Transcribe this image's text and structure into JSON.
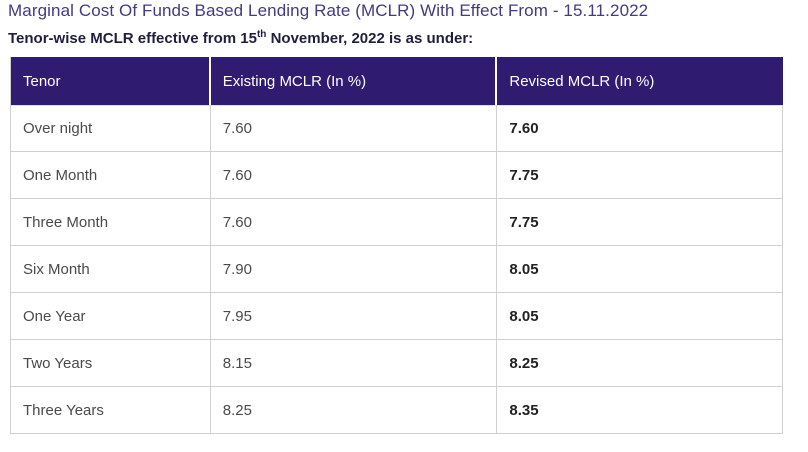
{
  "page": {
    "title": "Marginal Cost Of Funds Based Lending Rate (MCLR) With Effect From - 15.11.2022",
    "subtitle_prefix": "Tenor-wise MCLR effective from 15",
    "subtitle_superscript": "th",
    "subtitle_suffix": " November, 2022 is as under:"
  },
  "colors": {
    "header_bg": "#2f1b70",
    "title_text": "#433a80",
    "subtitle_text": "#1f1f3d",
    "body_text": "#4a4a4a",
    "revised_text": "#222222",
    "border": "#d0d0d0"
  },
  "table": {
    "headers": [
      "Tenor",
      "Existing MCLR (In %)",
      "Revised MCLR (In %)"
    ],
    "rows": [
      {
        "tenor": "Over night",
        "existing": "7.60",
        "revised": "7.60"
      },
      {
        "tenor": "One Month",
        "existing": "7.60",
        "revised": "7.75"
      },
      {
        "tenor": "Three Month",
        "existing": "7.60",
        "revised": "7.75"
      },
      {
        "tenor": "Six Month",
        "existing": "7.90",
        "revised": "8.05"
      },
      {
        "tenor": "One Year",
        "existing": "7.95",
        "revised": "8.05"
      },
      {
        "tenor": "Two Years",
        "existing": "8.15",
        "revised": "8.25"
      },
      {
        "tenor": "Three Years",
        "existing": "8.25",
        "revised": "8.35"
      }
    ]
  }
}
